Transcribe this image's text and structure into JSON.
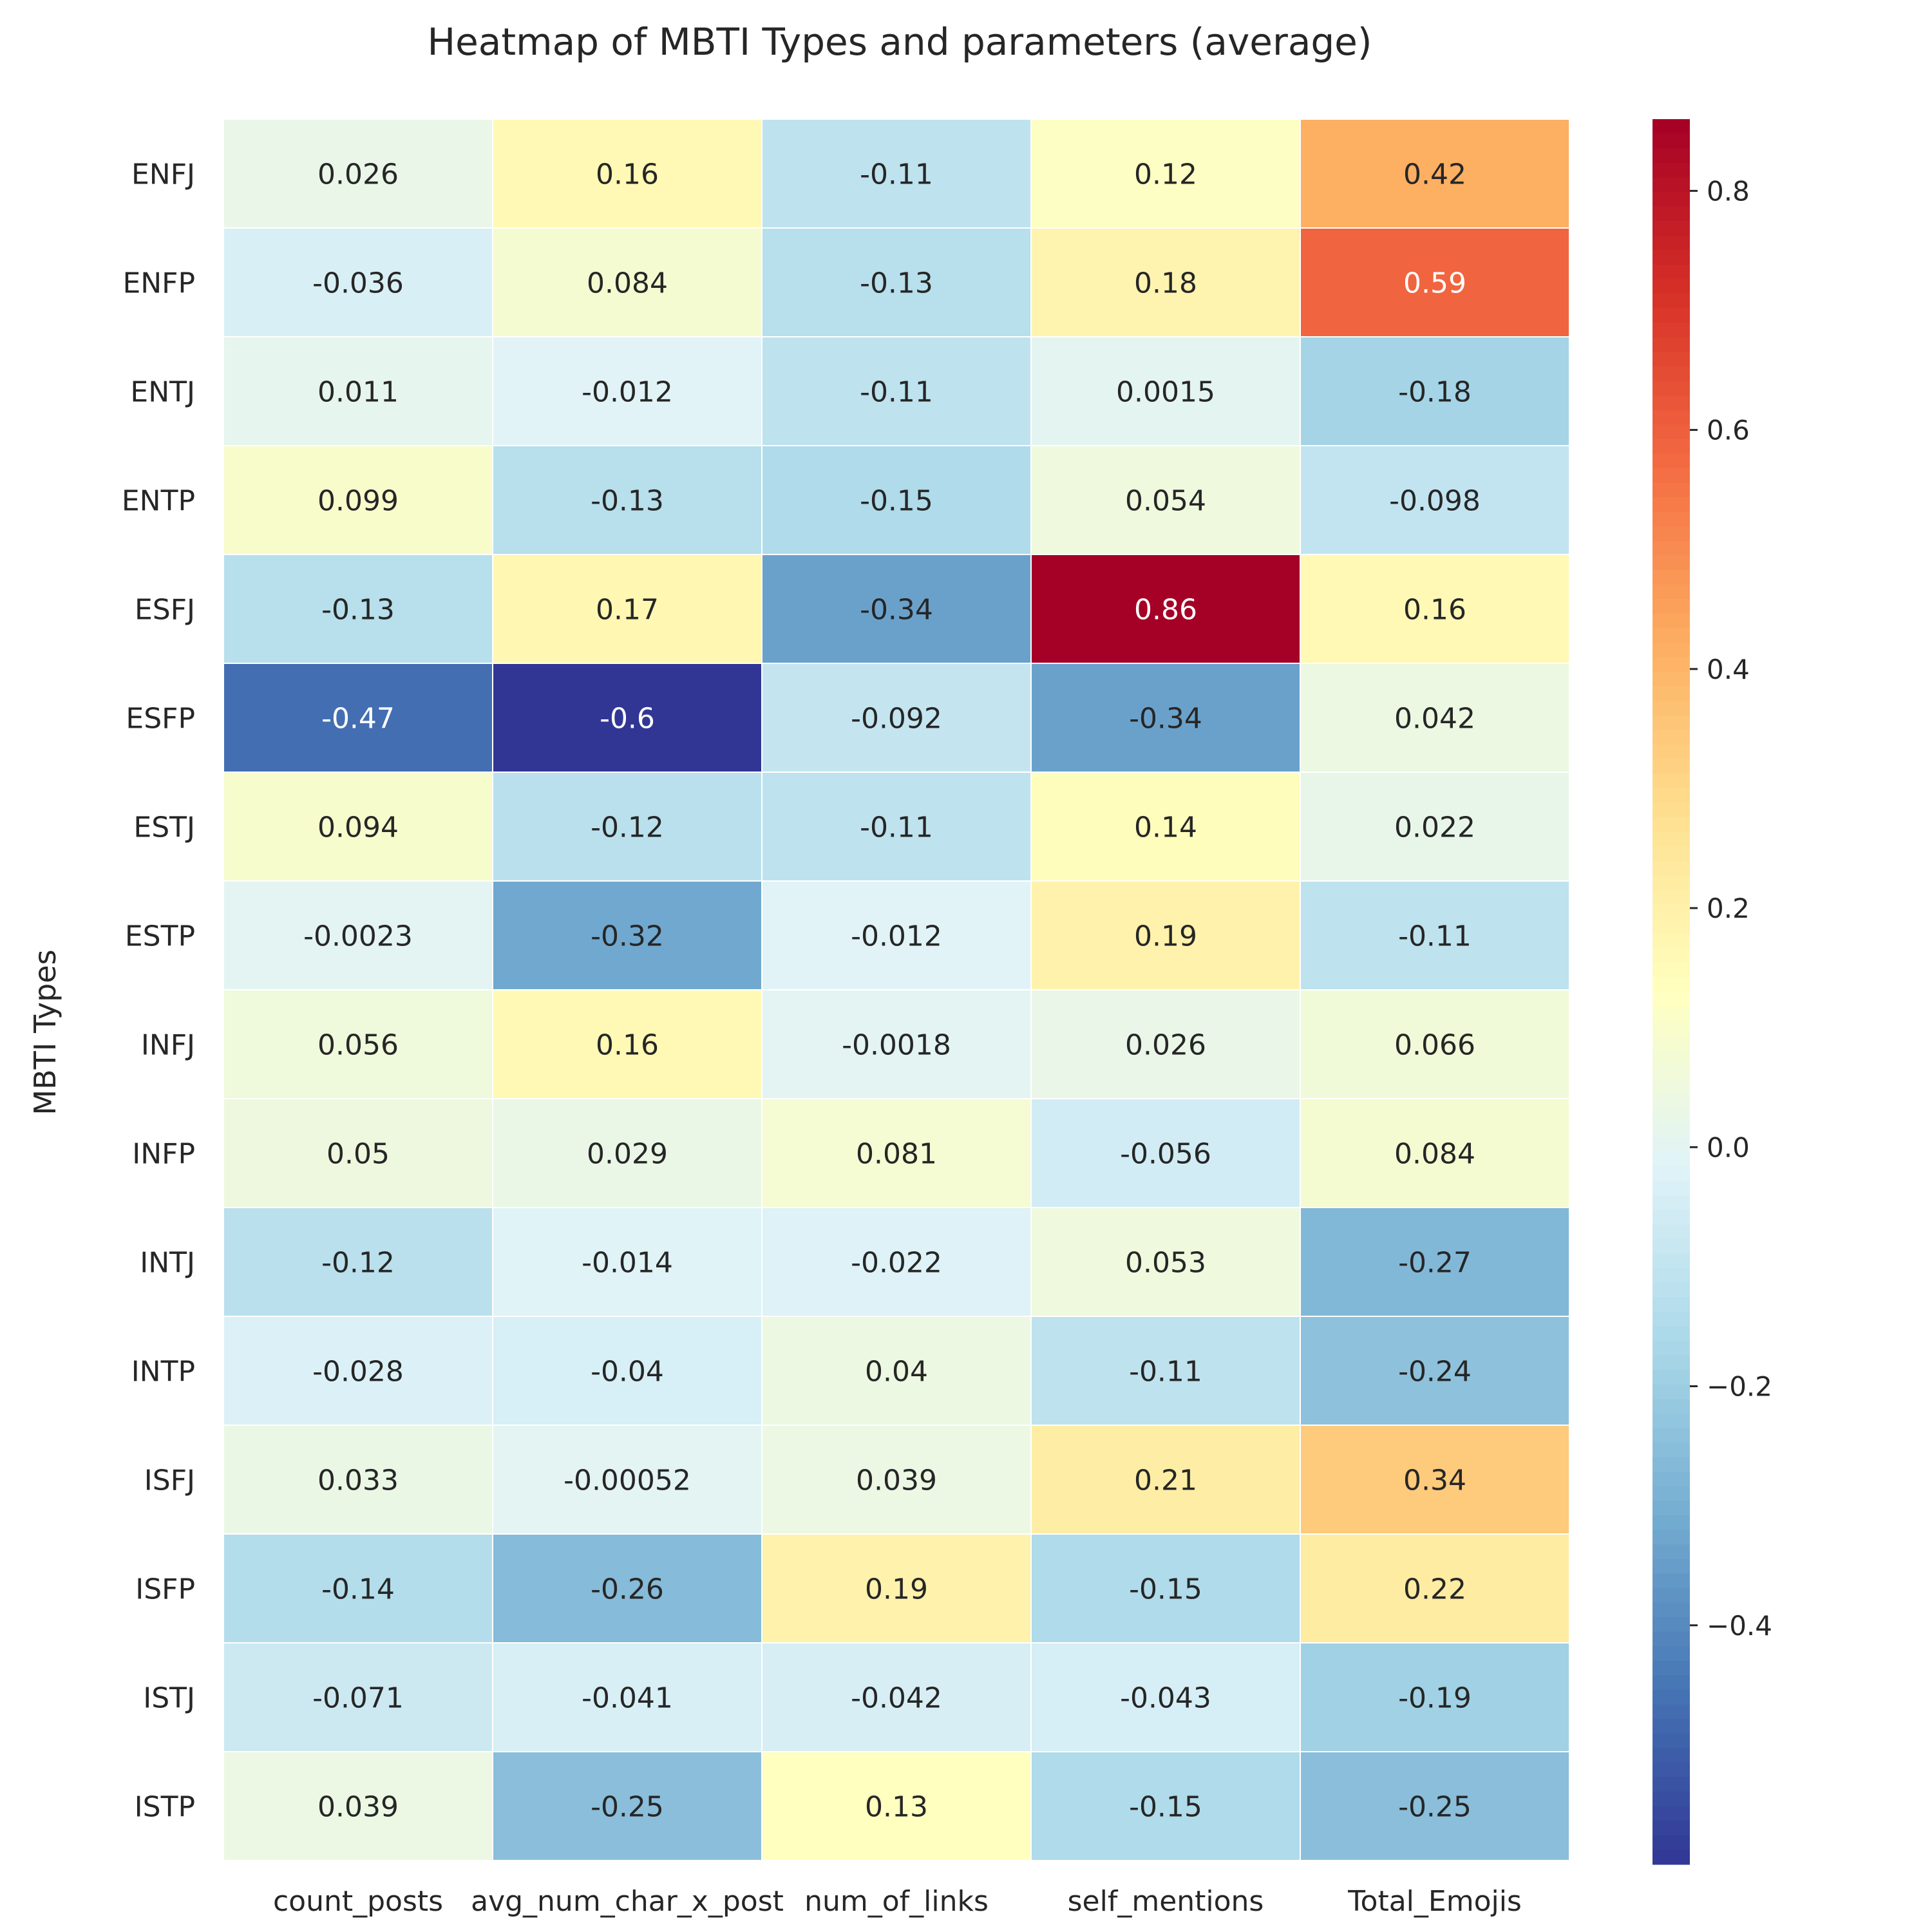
{
  "chart_data": {
    "type": "heatmap",
    "title": "Heatmap of MBTI Types and parameters (average)",
    "xlabel": "",
    "ylabel": "MBTI Types",
    "columns": [
      "count_posts",
      "avg_num_char_x_post",
      "num_of_links",
      "self_mentions",
      "Total_Emojis"
    ],
    "rows": [
      "ENFJ",
      "ENFP",
      "ENTJ",
      "ENTP",
      "ESFJ",
      "ESFP",
      "ESTJ",
      "ESTP",
      "INFJ",
      "INFP",
      "INTJ",
      "INTP",
      "ISFJ",
      "ISFP",
      "ISTJ",
      "ISTP"
    ],
    "values": [
      [
        "0.026",
        "0.16",
        "-0.11",
        "0.12",
        "0.42"
      ],
      [
        "-0.036",
        "0.084",
        "-0.13",
        "0.18",
        "0.59"
      ],
      [
        "0.011",
        "-0.012",
        "-0.11",
        "0.0015",
        "-0.18"
      ],
      [
        "0.099",
        "-0.13",
        "-0.15",
        "0.054",
        "-0.098"
      ],
      [
        "-0.13",
        "0.17",
        "-0.34",
        "0.86",
        "0.16"
      ],
      [
        "-0.47",
        "-0.6",
        "-0.092",
        "-0.34",
        "0.042"
      ],
      [
        "0.094",
        "-0.12",
        "-0.11",
        "0.14",
        "0.022"
      ],
      [
        "-0.0023",
        "-0.32",
        "-0.012",
        "0.19",
        "-0.11"
      ],
      [
        "0.056",
        "0.16",
        "-0.0018",
        "0.026",
        "0.066"
      ],
      [
        "0.05",
        "0.029",
        "0.081",
        "-0.056",
        "0.084"
      ],
      [
        "-0.12",
        "-0.014",
        "-0.022",
        "0.053",
        "-0.27"
      ],
      [
        "-0.028",
        "-0.04",
        "0.04",
        "-0.11",
        "-0.24"
      ],
      [
        "0.033",
        "-0.00052",
        "0.039",
        "0.21",
        "0.34"
      ],
      [
        "-0.14",
        "-0.26",
        "0.19",
        "-0.15",
        "0.22"
      ],
      [
        "-0.071",
        "-0.041",
        "-0.042",
        "-0.043",
        "-0.19"
      ],
      [
        "0.039",
        "-0.25",
        "0.13",
        "-0.15",
        "-0.25"
      ]
    ],
    "colormap": "RdYlBu_r",
    "vmin": -0.6,
    "vmax": 0.86,
    "colorbar_ticks": [
      "0.8",
      "0.6",
      "0.4",
      "0.2",
      "0.0",
      "−0.2",
      "−0.4"
    ],
    "colorbar_tick_values": [
      0.8,
      0.6,
      0.4,
      0.2,
      0.0,
      -0.2,
      -0.4
    ],
    "cell_border_color": "#ffffff",
    "text_color_dark": "#262626",
    "text_color_light": "#ffffff",
    "grid": false,
    "legend": "colorbar right"
  }
}
